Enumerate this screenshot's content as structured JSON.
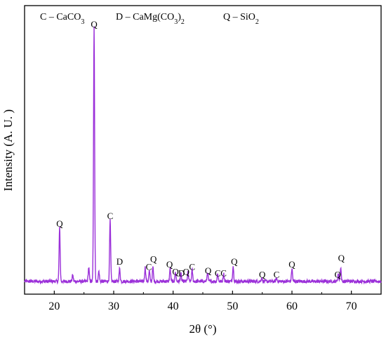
{
  "chart_data": {
    "type": "line",
    "xlabel": "2θ (°)",
    "ylabel": "Intensity (A. U. )",
    "xlim": [
      15,
      75
    ],
    "ylim": [
      0,
      100
    ],
    "grid": false,
    "y_tick_labels_shown": false,
    "x_ticks": [
      20,
      30,
      40,
      50,
      60,
      70
    ],
    "legend": [
      {
        "key": "C",
        "formula": "CaCO",
        "sub": "3",
        "tail": ""
      },
      {
        "key": "D",
        "formula": "CaMg(CO",
        "sub": "3",
        "tail": ")",
        "sub2": "2"
      },
      {
        "key": "Q",
        "formula": "SiO",
        "sub": "2",
        "tail": ""
      }
    ],
    "legend_separator": " – ",
    "line_color": "#9b30d9",
    "baseline": 2,
    "peaks": [
      {
        "x": 20.9,
        "y": 21
      },
      {
        "x": 23.1,
        "y": 2.5
      },
      {
        "x": 25.8,
        "y": 5.5
      },
      {
        "x": 26.7,
        "y": 100
      },
      {
        "x": 27.5,
        "y": 4
      },
      {
        "x": 29.4,
        "y": 24
      },
      {
        "x": 31.0,
        "y": 5
      },
      {
        "x": 35.3,
        "y": 5.5
      },
      {
        "x": 36.0,
        "y": 4
      },
      {
        "x": 36.6,
        "y": 5.5
      },
      {
        "x": 39.5,
        "y": 5
      },
      {
        "x": 40.4,
        "y": 3.5
      },
      {
        "x": 41.3,
        "y": 3
      },
      {
        "x": 42.5,
        "y": 3.5
      },
      {
        "x": 43.2,
        "y": 4.5
      },
      {
        "x": 45.8,
        "y": 3.5
      },
      {
        "x": 47.5,
        "y": 3
      },
      {
        "x": 48.5,
        "y": 3
      },
      {
        "x": 50.1,
        "y": 6
      },
      {
        "x": 54.9,
        "y": 1.5
      },
      {
        "x": 57.4,
        "y": 1.2
      },
      {
        "x": 60.0,
        "y": 5
      },
      {
        "x": 67.8,
        "y": 3
      },
      {
        "x": 68.2,
        "y": 5.5
      }
    ],
    "annotations": [
      {
        "label": "Q",
        "x": 20.9,
        "y": 23.5
      },
      {
        "label": "Q",
        "x": 26.7,
        "y": 102
      },
      {
        "label": "C",
        "x": 29.4,
        "y": 26.5
      },
      {
        "label": "D",
        "x": 31.0,
        "y": 8.5
      },
      {
        "label": "C",
        "x": 35.9,
        "y": 6.5
      },
      {
        "label": "Q",
        "x": 36.7,
        "y": 9.5
      },
      {
        "label": "Q",
        "x": 39.4,
        "y": 7.5
      },
      {
        "label": "Q",
        "x": 40.4,
        "y": 4.5
      },
      {
        "label": "D",
        "x": 41.4,
        "y": 4
      },
      {
        "label": "Q",
        "x": 42.2,
        "y": 4.5
      },
      {
        "label": "C",
        "x": 43.2,
        "y": 6.5
      },
      {
        "label": "Q",
        "x": 45.9,
        "y": 5.0
      },
      {
        "label": "C",
        "x": 47.5,
        "y": 4.0
      },
      {
        "label": "C",
        "x": 48.5,
        "y": 4.0
      },
      {
        "label": "Q",
        "x": 50.3,
        "y": 8.5
      },
      {
        "label": "Q",
        "x": 55.0,
        "y": 3.5
      },
      {
        "label": "C",
        "x": 57.4,
        "y": 3.5
      },
      {
        "label": "Q",
        "x": 60.0,
        "y": 7.5
      },
      {
        "label": "Q",
        "x": 67.7,
        "y": 3.5
      },
      {
        "label": "Q",
        "x": 68.3,
        "y": 10.0
      }
    ]
  }
}
